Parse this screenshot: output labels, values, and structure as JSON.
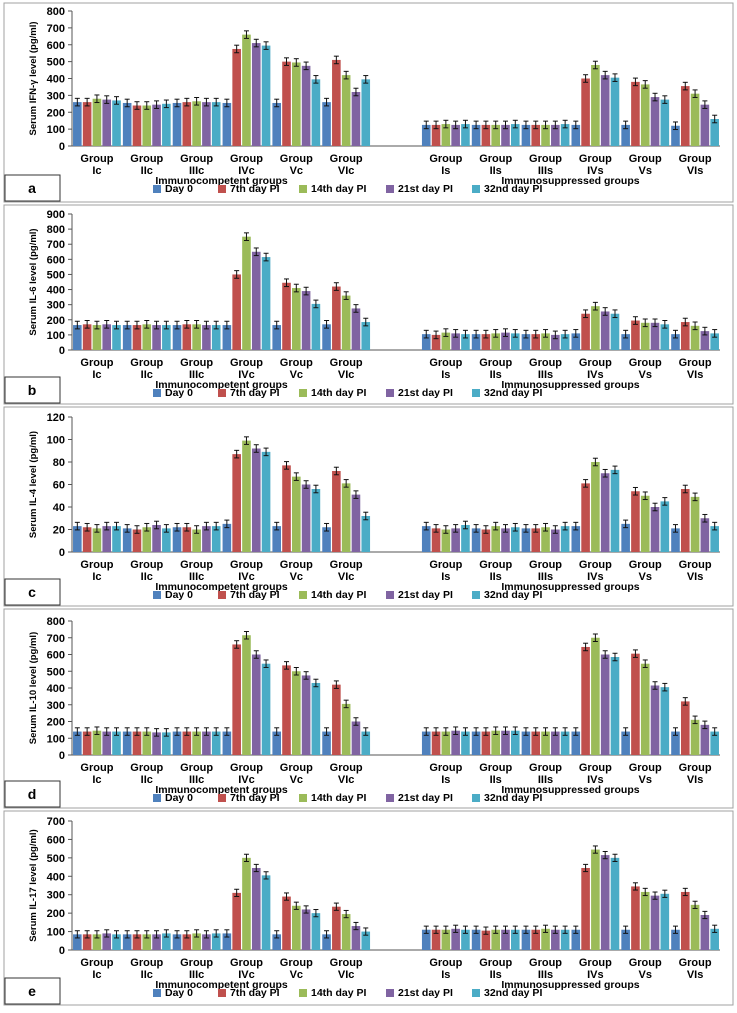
{
  "series_names": [
    "Day 0",
    "7th day PI",
    "14th day PI",
    "21st day PI",
    "32nd day PI"
  ],
  "series_colors": [
    "#4f81bd",
    "#c0504d",
    "#9bbb59",
    "#8064a2",
    "#4bacc6"
  ],
  "categories": [
    "Group Ic",
    "Group IIc",
    "Group IIIc",
    "Group IVc",
    "Group Vc",
    "Group VIc",
    "Group Is",
    "Group IIs",
    "Group IIIs",
    "Group IVs",
    "Group Vs",
    "Group VIs"
  ],
  "group_labels": {
    "competent": "Immunocompetent groups",
    "suppressed": "Immunosuppressed groups"
  },
  "chart_data": [
    {
      "type": "bar",
      "panel_label": "a",
      "ylabel": "Serum IFN-γ level (pg/ml)",
      "ylim": [
        0,
        800
      ],
      "yticks": [
        0,
        100,
        200,
        300,
        400,
        500,
        600,
        700,
        800
      ],
      "series": [
        {
          "name": "Day 0",
          "values": [
            260,
            255,
            255,
            255,
            255,
            260,
            125,
            125,
            125,
            125,
            125,
            120
          ]
        },
        {
          "name": "7th day PI",
          "values": [
            260,
            240,
            260,
            575,
            500,
            510,
            125,
            125,
            125,
            400,
            380,
            355
          ]
        },
        {
          "name": "14th day PI",
          "values": [
            280,
            240,
            265,
            660,
            495,
            420,
            130,
            125,
            125,
            480,
            365,
            310
          ]
        },
        {
          "name": "21st day PI",
          "values": [
            275,
            245,
            260,
            610,
            475,
            320,
            125,
            125,
            125,
            420,
            290,
            245
          ]
        },
        {
          "name": "32nd day PI",
          "values": [
            270,
            250,
            260,
            595,
            395,
            395,
            130,
            130,
            130,
            405,
            275,
            160
          ]
        }
      ]
    },
    {
      "type": "bar",
      "panel_label": "b",
      "ylabel": "Serum IL-6 level (pg/ml)",
      "ylim": [
        0,
        900
      ],
      "yticks": [
        0,
        100,
        200,
        300,
        400,
        500,
        600,
        700,
        800,
        900
      ],
      "series": [
        {
          "name": "Day 0",
          "values": [
            165,
            165,
            165,
            165,
            165,
            170,
            105,
            105,
            105,
            110,
            105,
            105
          ]
        },
        {
          "name": "7th day PI",
          "values": [
            170,
            165,
            170,
            500,
            445,
            420,
            100,
            105,
            105,
            240,
            195,
            185
          ]
        },
        {
          "name": "14th day PI",
          "values": [
            165,
            170,
            170,
            750,
            410,
            360,
            115,
            110,
            110,
            290,
            180,
            160
          ]
        },
        {
          "name": "21st day PI",
          "values": [
            170,
            165,
            165,
            650,
            390,
            275,
            110,
            115,
            100,
            255,
            180,
            125
          ]
        },
        {
          "name": "32nd day PI",
          "values": [
            165,
            165,
            165,
            615,
            305,
            185,
            105,
            110,
            105,
            240,
            170,
            110
          ]
        }
      ]
    },
    {
      "type": "bar",
      "panel_label": "c",
      "ylabel": "Serum IL-4 level (pg/ml)",
      "ylim": [
        0,
        120
      ],
      "yticks": [
        0,
        20,
        40,
        60,
        80,
        100,
        120
      ],
      "series": [
        {
          "name": "Day 0",
          "values": [
            23,
            21,
            22,
            25,
            23,
            22,
            23,
            21,
            21,
            23,
            25,
            21
          ]
        },
        {
          "name": "7th day PI",
          "values": [
            22,
            20,
            22,
            87,
            77,
            72,
            21,
            20,
            21,
            61,
            54,
            56
          ]
        },
        {
          "name": "14th day PI",
          "values": [
            21,
            22,
            20,
            99,
            67,
            61,
            20,
            23,
            22,
            80,
            50,
            49
          ]
        },
        {
          "name": "21st day PI",
          "values": [
            23,
            24,
            23,
            92,
            60,
            51,
            21,
            21,
            20,
            70,
            40,
            30
          ]
        },
        {
          "name": "32nd day PI",
          "values": [
            23,
            21,
            23,
            89,
            56,
            32,
            24,
            22,
            23,
            73,
            45,
            23
          ]
        }
      ]
    },
    {
      "type": "bar",
      "panel_label": "d",
      "ylabel": "Serum IL-10 level (pg/ml)",
      "ylim": [
        0,
        800
      ],
      "yticks": [
        0,
        100,
        200,
        300,
        400,
        500,
        600,
        700,
        800
      ],
      "series": [
        {
          "name": "Day 0",
          "values": [
            140,
            140,
            140,
            140,
            140,
            140,
            140,
            140,
            140,
            140,
            140,
            140
          ]
        },
        {
          "name": "7th day PI",
          "values": [
            140,
            140,
            140,
            660,
            535,
            420,
            140,
            140,
            140,
            645,
            605,
            320
          ]
        },
        {
          "name": "14th day PI",
          "values": [
            145,
            140,
            140,
            715,
            500,
            305,
            140,
            145,
            140,
            700,
            545,
            210
          ]
        },
        {
          "name": "21st day PI",
          "values": [
            140,
            135,
            140,
            600,
            475,
            200,
            145,
            145,
            140,
            600,
            415,
            180
          ]
        },
        {
          "name": "32nd day PI",
          "values": [
            140,
            135,
            140,
            545,
            430,
            140,
            140,
            145,
            140,
            585,
            405,
            140
          ]
        }
      ]
    },
    {
      "type": "bar",
      "panel_label": "e",
      "ylabel": "Serum IL-17 level (pg/ml)",
      "ylim": [
        0,
        700
      ],
      "yticks": [
        0,
        100,
        200,
        300,
        400,
        500,
        600,
        700
      ],
      "series": [
        {
          "name": "Day 0",
          "values": [
            85,
            85,
            85,
            90,
            85,
            85,
            110,
            110,
            110,
            110,
            110,
            110
          ]
        },
        {
          "name": "7th day PI",
          "values": [
            85,
            85,
            85,
            310,
            290,
            235,
            110,
            105,
            110,
            445,
            345,
            315
          ]
        },
        {
          "name": "14th day PI",
          "values": [
            85,
            85,
            90,
            500,
            240,
            195,
            110,
            110,
            115,
            545,
            315,
            245
          ]
        },
        {
          "name": "21st day PI",
          "values": [
            90,
            85,
            85,
            445,
            220,
            130,
            115,
            110,
            110,
            515,
            295,
            190
          ]
        },
        {
          "name": "32nd day PI",
          "values": [
            85,
            90,
            90,
            405,
            200,
            100,
            110,
            110,
            110,
            500,
            305,
            115
          ]
        }
      ]
    }
  ]
}
